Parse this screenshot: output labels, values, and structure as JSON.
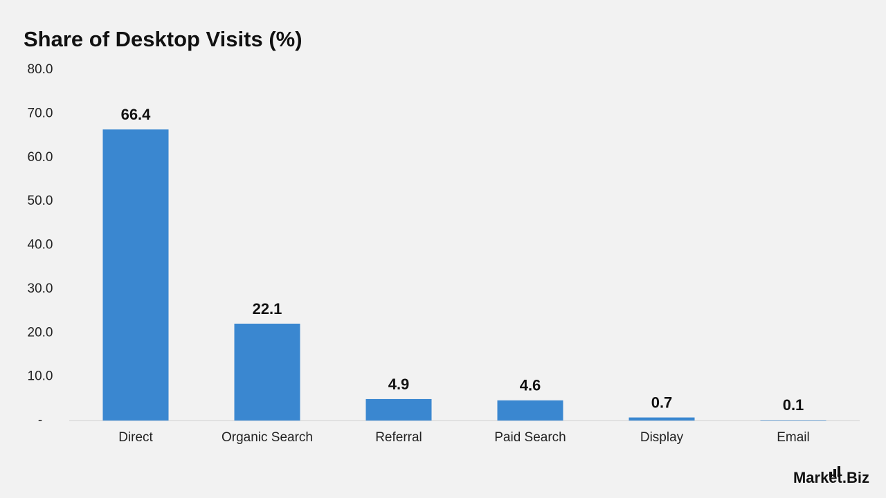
{
  "chart_data": {
    "type": "bar",
    "title": "Share of Desktop Visits (%)",
    "categories": [
      "Direct",
      "Organic Search",
      "Referral",
      "Paid Search",
      "Display",
      "Email"
    ],
    "values": [
      66.4,
      22.1,
      4.9,
      4.6,
      0.7,
      0.1
    ],
    "color": "#3a87d0",
    "ylim": [
      0,
      80
    ],
    "yticks": [
      {
        "value": 0,
        "label": "-"
      },
      {
        "value": 10,
        "label": "10.0"
      },
      {
        "value": 20,
        "label": "20.0"
      },
      {
        "value": 30,
        "label": "30.0"
      },
      {
        "value": 40,
        "label": "40.0"
      },
      {
        "value": 50,
        "label": "50.0"
      },
      {
        "value": 60,
        "label": "60.0"
      },
      {
        "value": 70,
        "label": "70.0"
      },
      {
        "value": 80,
        "label": "80.0"
      }
    ],
    "grid": false,
    "logo": "Market.Biz"
  }
}
